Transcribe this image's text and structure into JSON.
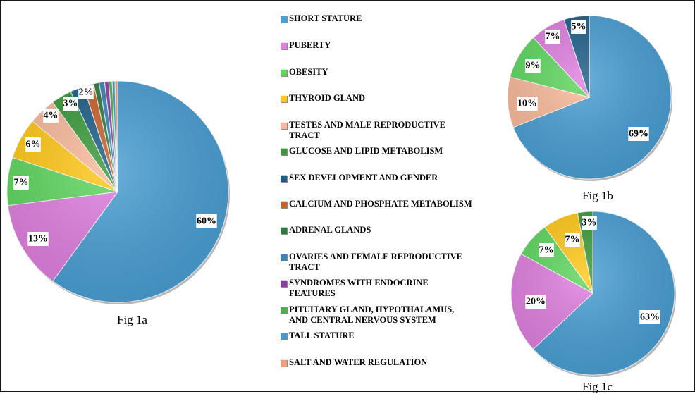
{
  "chart_data": [
    {
      "type": "pie",
      "caption": "Fig 1a",
      "slices": [
        {
          "label": "SHORT STATURE",
          "value": 60,
          "data_label": "60%"
        },
        {
          "label": "PUBERTY",
          "value": 13,
          "data_label": "13%"
        },
        {
          "label": "OBESITY",
          "value": 7,
          "data_label": "7%"
        },
        {
          "label": "THYROID GLAND",
          "value": 6,
          "data_label": "6%"
        },
        {
          "label": "TESTES AND MALE REPRODUCTIVE TRACT",
          "value": 4,
          "data_label": "4%"
        },
        {
          "label": "GLUCOSE AND LIPID METABOLISM",
          "value": 3,
          "data_label": "3%"
        },
        {
          "label": "SEX DEVELOPMENT AND GENDER",
          "value": 2,
          "data_label": "2%"
        },
        {
          "label": "CALCIUM AND PHOSPHATE METABOLISM",
          "value": 1.5,
          "data_label": ""
        },
        {
          "label": "ADRENAL GLANDS",
          "value": 0.8,
          "data_label": ""
        },
        {
          "label": "OVARIES AND FEMALE REPRODUCTIVE TRACT",
          "value": 0.8,
          "data_label": ""
        },
        {
          "label": "SYNDROMES WITH ENDOCRINE FEATURES",
          "value": 0.6,
          "data_label": ""
        },
        {
          "label": "PITUITARY GLAND, HYPOTHALAMUS, AND CENTRAL NERVOUS SYSTEM",
          "value": 0.5,
          "data_label": ""
        },
        {
          "label": "TALL STATURE",
          "value": 0.4,
          "data_label": ""
        },
        {
          "label": "SALT AND WATER REGULATION",
          "value": 0.4,
          "data_label": ""
        }
      ]
    },
    {
      "type": "pie",
      "caption": "Fig 1b",
      "slices": [
        {
          "label": "SHORT STATURE",
          "value": 69,
          "data_label": "69%"
        },
        {
          "label": "TESTES AND MALE REPRODUCTIVE TRACT",
          "value": 10,
          "data_label": "10%"
        },
        {
          "label": "OBESITY",
          "value": 9,
          "data_label": "9%"
        },
        {
          "label": "PUBERTY",
          "value": 7,
          "data_label": "7%"
        },
        {
          "label": "SEX DEVELOPMENT AND GENDER",
          "value": 5,
          "data_label": "5%"
        }
      ]
    },
    {
      "type": "pie",
      "caption": "Fig 1c",
      "slices": [
        {
          "label": "SHORT STATURE",
          "value": 63,
          "data_label": "63%"
        },
        {
          "label": "PUBERTY",
          "value": 20,
          "data_label": "20%"
        },
        {
          "label": "OBESITY",
          "value": 7,
          "data_label": "7%"
        },
        {
          "label": "THYROID GLAND",
          "value": 7,
          "data_label": "7%"
        },
        {
          "label": "GLUCOSE AND LIPID METABOLISM",
          "value": 3,
          "data_label": "3%"
        }
      ]
    }
  ],
  "legend": {
    "placement": "center",
    "items": [
      {
        "label": "SHORT STATURE",
        "color": "#4a9fd4"
      },
      {
        "label": "PUBERTY",
        "color": "#df7fdf"
      },
      {
        "label": "OBESITY",
        "color": "#5fd65f"
      },
      {
        "label": "THYROID GLAND",
        "color": "#ffc819"
      },
      {
        "label": "TESTES AND MALE REPRODUCTIVE\nTRACT",
        "color": "#f8b99a"
      },
      {
        "label": "GLUCOSE AND LIPID METABOLISM",
        "color": "#3a9a3a"
      },
      {
        "label": "SEX DEVELOPMENT AND GENDER",
        "color": "#1e5f88"
      },
      {
        "label": "CALCIUM AND PHOSPHATE METABOLISM",
        "color": "#c8602d"
      },
      {
        "label": "ADRENAL GLANDS",
        "color": "#2f7a3f"
      },
      {
        "label": "OVARIES AND FEMALE REPRODUCTIVE\nTRACT",
        "color": "#3b83b8"
      },
      {
        "label": "SYNDROMES WITH ENDOCRINE\nFEATURES",
        "color": "#8e3ea0"
      },
      {
        "label": "PITUITARY GLAND, HYPOTHALAMUS,\nAND CENTRAL NERVOUS SYSTEM",
        "color": "#4fae4f"
      },
      {
        "label": "TALL STATURE",
        "color": "#3f9bd0"
      },
      {
        "label": "SALT AND WATER REGULATION",
        "color": "#f0a07e"
      }
    ]
  },
  "colors": {
    "SHORT STATURE": "#4a9fd4",
    "PUBERTY": "#df7fdf",
    "OBESITY": "#5fd65f",
    "THYROID GLAND": "#ffc819",
    "TESTES AND MALE REPRODUCTIVE TRACT": "#f8b99a",
    "GLUCOSE AND LIPID METABOLISM": "#3a9a3a",
    "SEX DEVELOPMENT AND GENDER": "#1e5f88",
    "CALCIUM AND PHOSPHATE METABOLISM": "#c8602d",
    "ADRENAL GLANDS": "#2f7a3f",
    "OVARIES AND FEMALE REPRODUCTIVE TRACT": "#3b83b8",
    "SYNDROMES WITH ENDOCRINE FEATURES": "#8e3ea0",
    "PITUITARY GLAND, HYPOTHALAMUS, AND CENTRAL NERVOUS SYSTEM": "#4fae4f",
    "TALL STATURE": "#3f9bd0",
    "SALT AND WATER REGULATION": "#f0a07e"
  }
}
